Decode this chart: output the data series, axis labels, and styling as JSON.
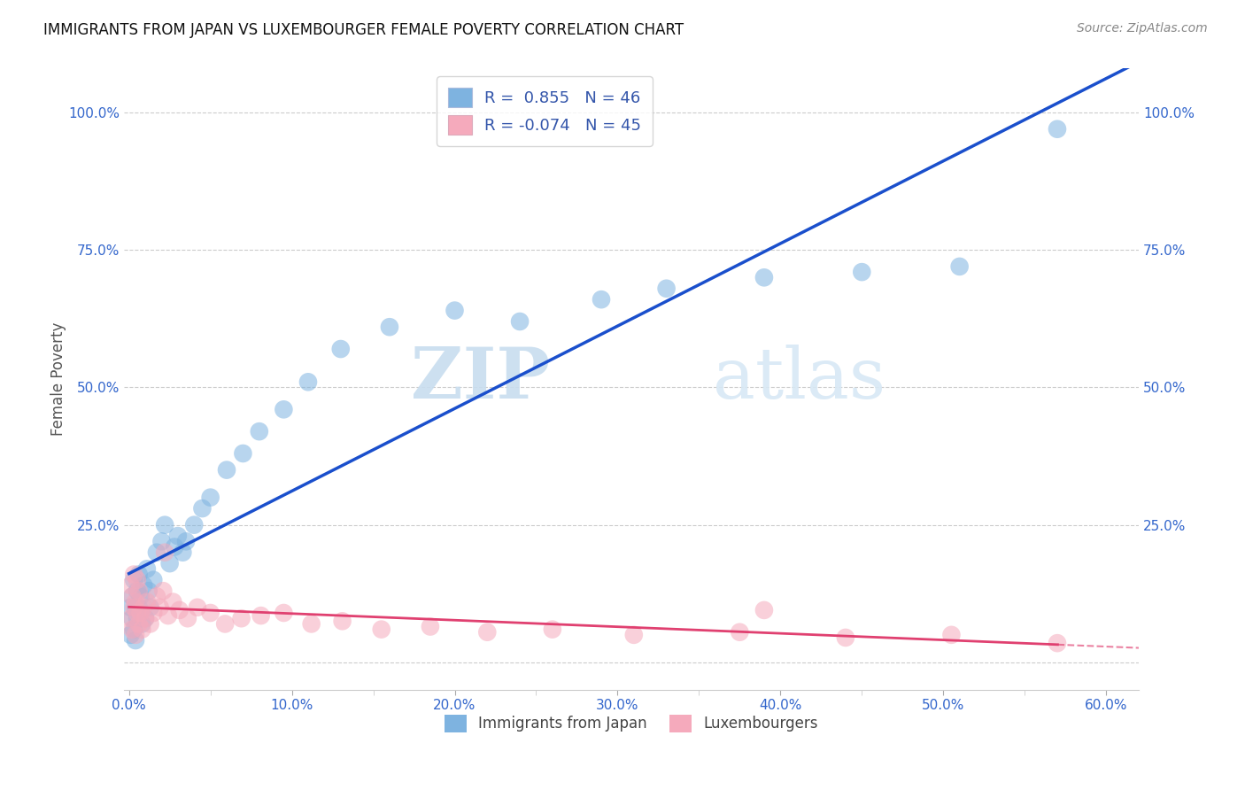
{
  "title": "IMMIGRANTS FROM JAPAN VS LUXEMBOURGER FEMALE POVERTY CORRELATION CHART",
  "source": "Source: ZipAtlas.com",
  "ylabel": "Female Poverty",
  "watermark": "ZIPatlas",
  "blue_color": "#7EB3E0",
  "pink_color": "#F5AABC",
  "line_blue": "#1A4FCC",
  "line_pink": "#E04070",
  "blue_points_x": [
    0.001,
    0.001,
    0.002,
    0.002,
    0.003,
    0.003,
    0.004,
    0.004,
    0.005,
    0.005,
    0.006,
    0.006,
    0.007,
    0.008,
    0.009,
    0.01,
    0.011,
    0.012,
    0.013,
    0.015,
    0.017,
    0.02,
    0.022,
    0.025,
    0.028,
    0.03,
    0.033,
    0.035,
    0.04,
    0.045,
    0.05,
    0.06,
    0.07,
    0.08,
    0.095,
    0.11,
    0.13,
    0.16,
    0.2,
    0.24,
    0.29,
    0.33,
    0.39,
    0.45,
    0.51,
    0.57
  ],
  "blue_points_y": [
    0.05,
    0.1,
    0.08,
    0.12,
    0.06,
    0.15,
    0.04,
    0.1,
    0.08,
    0.13,
    0.1,
    0.16,
    0.12,
    0.07,
    0.14,
    0.08,
    0.17,
    0.13,
    0.1,
    0.15,
    0.2,
    0.22,
    0.25,
    0.18,
    0.21,
    0.23,
    0.2,
    0.22,
    0.25,
    0.28,
    0.3,
    0.35,
    0.38,
    0.42,
    0.46,
    0.51,
    0.57,
    0.61,
    0.64,
    0.62,
    0.66,
    0.68,
    0.7,
    0.71,
    0.72,
    0.97
  ],
  "pink_points_x": [
    0.001,
    0.001,
    0.002,
    0.002,
    0.003,
    0.003,
    0.004,
    0.004,
    0.005,
    0.005,
    0.006,
    0.006,
    0.007,
    0.008,
    0.009,
    0.01,
    0.011,
    0.013,
    0.015,
    0.017,
    0.019,
    0.021,
    0.024,
    0.027,
    0.031,
    0.036,
    0.042,
    0.05,
    0.059,
    0.069,
    0.081,
    0.095,
    0.112,
    0.131,
    0.155,
    0.185,
    0.22,
    0.26,
    0.31,
    0.375,
    0.44,
    0.505,
    0.57,
    0.022,
    0.39
  ],
  "pink_points_y": [
    0.08,
    0.14,
    0.06,
    0.12,
    0.1,
    0.16,
    0.05,
    0.11,
    0.09,
    0.15,
    0.07,
    0.13,
    0.09,
    0.06,
    0.1,
    0.08,
    0.11,
    0.07,
    0.09,
    0.12,
    0.1,
    0.13,
    0.085,
    0.11,
    0.095,
    0.08,
    0.1,
    0.09,
    0.07,
    0.08,
    0.085,
    0.09,
    0.07,
    0.075,
    0.06,
    0.065,
    0.055,
    0.06,
    0.05,
    0.055,
    0.045,
    0.05,
    0.035,
    0.2,
    0.095
  ],
  "xlim": [
    -0.003,
    0.62
  ],
  "ylim": [
    -0.05,
    1.08
  ],
  "xticks": [
    0.0,
    0.1,
    0.2,
    0.3,
    0.4,
    0.5,
    0.6
  ],
  "xtick_labels": [
    "0.0%",
    "10.0%",
    "20.0%",
    "30.0%",
    "40.0%",
    "50.0%",
    "60.0%"
  ],
  "yticks": [
    0.0,
    0.25,
    0.5,
    0.75,
    1.0
  ],
  "ytick_labels_left": [
    "",
    "25.0%",
    "50.0%",
    "75.0%",
    "100.0%"
  ],
  "ytick_labels_right": [
    "",
    "25.0%",
    "50.0%",
    "75.0%",
    "100.0%"
  ]
}
